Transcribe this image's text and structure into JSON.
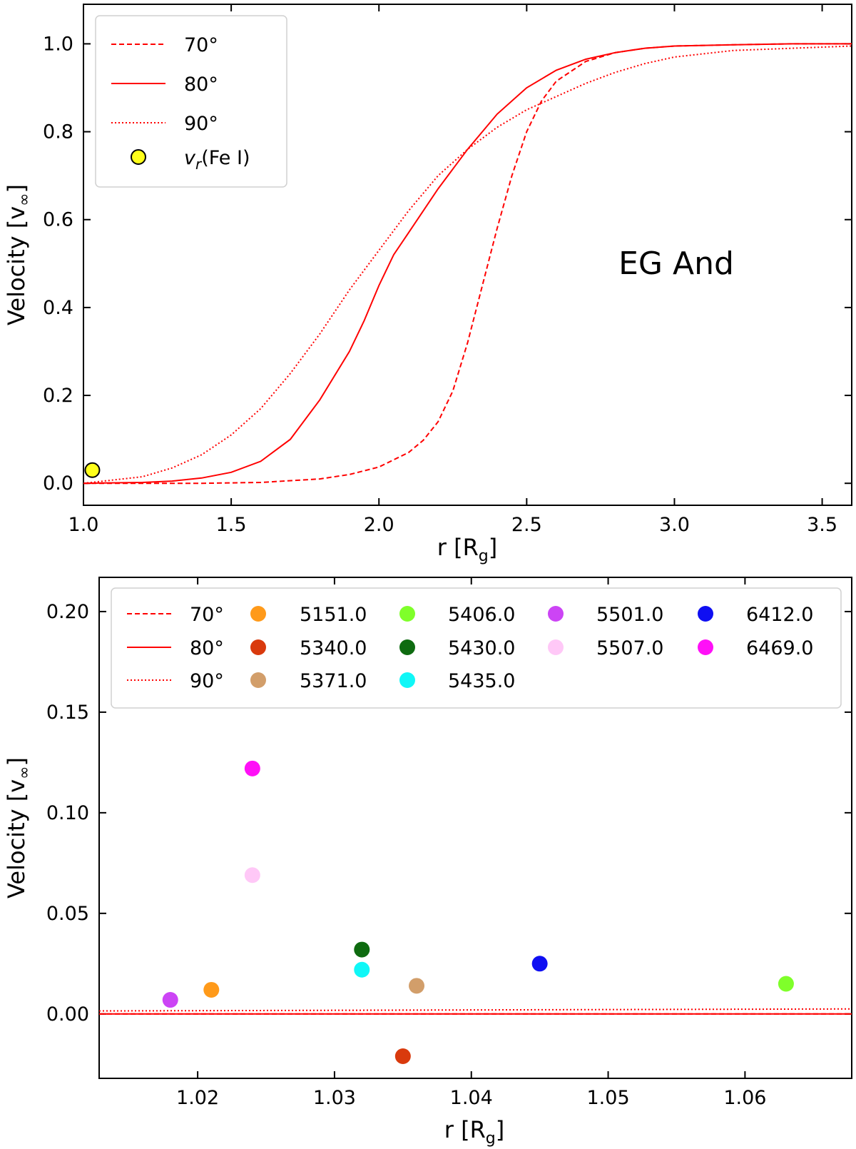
{
  "chart_data": [
    {
      "type": "line",
      "xlabel": "r [R",
      "xlabel_sub": "g",
      "xlabel_close": "]",
      "ylabel": "Velocity [v",
      "ylabel_sub": "∞",
      "ylabel_close": "]",
      "xlim": [
        1.0,
        3.6
      ],
      "ylim": [
        -0.05,
        1.09
      ],
      "xticks": [
        "1.0",
        "1.5",
        "2.0",
        "2.5",
        "3.0",
        "3.5"
      ],
      "xtick_values": [
        1.0,
        1.5,
        2.0,
        2.5,
        3.0,
        3.5
      ],
      "yticks": [
        "0.0",
        "0.2",
        "0.4",
        "0.6",
        "0.8",
        "1.0"
      ],
      "ytick_values": [
        0.0,
        0.2,
        0.4,
        0.6,
        0.8,
        1.0
      ],
      "annotation": "EG And",
      "legend_position": "top-left",
      "series": [
        {
          "name": "70°",
          "style": "dashed",
          "color": "#ff0000",
          "x": [
            1.0,
            1.2,
            1.4,
            1.6,
            1.8,
            1.9,
            2.0,
            2.1,
            2.15,
            2.2,
            2.25,
            2.3,
            2.35,
            2.4,
            2.45,
            2.5,
            2.55,
            2.6,
            2.7,
            2.8,
            2.9,
            3.0,
            3.2,
            3.4,
            3.6
          ],
          "y": [
            0.0,
            0.0,
            0.0,
            0.002,
            0.01,
            0.02,
            0.037,
            0.07,
            0.098,
            0.14,
            0.21,
            0.32,
            0.45,
            0.58,
            0.7,
            0.8,
            0.87,
            0.915,
            0.96,
            0.98,
            0.99,
            0.995,
            0.998,
            1.0,
            1.0
          ]
        },
        {
          "name": "80°",
          "style": "solid",
          "color": "#ff0000",
          "x": [
            1.0,
            1.2,
            1.3,
            1.4,
            1.5,
            1.6,
            1.7,
            1.8,
            1.9,
            1.95,
            2.0,
            2.05,
            2.1,
            2.2,
            2.3,
            2.4,
            2.5,
            2.6,
            2.7,
            2.8,
            2.9,
            3.0,
            3.2,
            3.4,
            3.6
          ],
          "y": [
            0.0,
            0.002,
            0.005,
            0.012,
            0.025,
            0.05,
            0.1,
            0.19,
            0.3,
            0.37,
            0.45,
            0.52,
            0.57,
            0.67,
            0.76,
            0.84,
            0.9,
            0.94,
            0.965,
            0.98,
            0.99,
            0.995,
            0.998,
            1.0,
            1.0
          ]
        },
        {
          "name": "90°",
          "style": "dotted",
          "color": "#ff0000",
          "x": [
            1.0,
            1.2,
            1.3,
            1.4,
            1.5,
            1.6,
            1.7,
            1.8,
            1.9,
            2.0,
            2.1,
            2.2,
            2.3,
            2.4,
            2.5,
            2.6,
            2.7,
            2.8,
            2.9,
            3.0,
            3.2,
            3.4,
            3.6
          ],
          "y": [
            0.0,
            0.015,
            0.035,
            0.065,
            0.11,
            0.17,
            0.25,
            0.34,
            0.44,
            0.53,
            0.62,
            0.7,
            0.76,
            0.81,
            0.85,
            0.88,
            0.91,
            0.935,
            0.955,
            0.97,
            0.985,
            0.99,
            0.995
          ]
        }
      ],
      "points": [
        {
          "name": "v",
          "name_sub": "r",
          "name_suffix": "(Fe I)",
          "x": 1.03,
          "y": 0.03,
          "color": "#ffff1a"
        }
      ]
    },
    {
      "type": "scatter",
      "xlabel": "r [R",
      "xlabel_sub": "g",
      "xlabel_close": "]",
      "ylabel": "Velocity [v",
      "ylabel_sub": "∞",
      "ylabel_close": "]",
      "xlim": [
        1.0128,
        1.0678
      ],
      "ylim": [
        -0.032,
        0.217
      ],
      "xticks": [
        "1.02",
        "1.03",
        "1.04",
        "1.05",
        "1.06"
      ],
      "xtick_values": [
        1.02,
        1.03,
        1.04,
        1.05,
        1.06
      ],
      "yticks": [
        "0.00",
        "0.05",
        "0.10",
        "0.15",
        "0.20"
      ],
      "ytick_values": [
        0.0,
        0.05,
        0.1,
        0.15,
        0.2
      ],
      "legend_position": "top",
      "lines": [
        {
          "name": "70°",
          "style": "dashed",
          "color": "#ff0000",
          "y0": 0.0,
          "y1": 0.0
        },
        {
          "name": "80°",
          "style": "solid",
          "color": "#ff0000",
          "y0": 0.0,
          "y1": 0.0
        },
        {
          "name": "90°",
          "style": "dotted",
          "color": "#ff0000",
          "y0": 0.0015,
          "y1": 0.0025
        }
      ],
      "series": [
        {
          "name": "5151.0",
          "color": "#ff9a1a",
          "x": 1.021,
          "y": 0.012
        },
        {
          "name": "5340.0",
          "color": "#d93a0d",
          "x": 1.035,
          "y": -0.021
        },
        {
          "name": "5371.0",
          "color": "#d29e6a",
          "x": 1.036,
          "y": 0.014
        },
        {
          "name": "5406.0",
          "color": "#7fff2a",
          "x": 1.063,
          "y": 0.015
        },
        {
          "name": "5430.0",
          "color": "#0e6b10",
          "x": 1.032,
          "y": 0.032
        },
        {
          "name": "5435.0",
          "color": "#10f7f7",
          "x": 1.032,
          "y": 0.022
        },
        {
          "name": "5501.0",
          "color": "#cc44f5",
          "x": 1.018,
          "y": 0.007
        },
        {
          "name": "5507.0",
          "color": "#ffc8f7",
          "x": 1.024,
          "y": 0.069
        },
        {
          "name": "6412.0",
          "color": "#0f0ff2",
          "x": 1.045,
          "y": 0.025
        },
        {
          "name": "6469.0",
          "color": "#ff10f7",
          "x": 1.024,
          "y": 0.122
        }
      ]
    }
  ]
}
